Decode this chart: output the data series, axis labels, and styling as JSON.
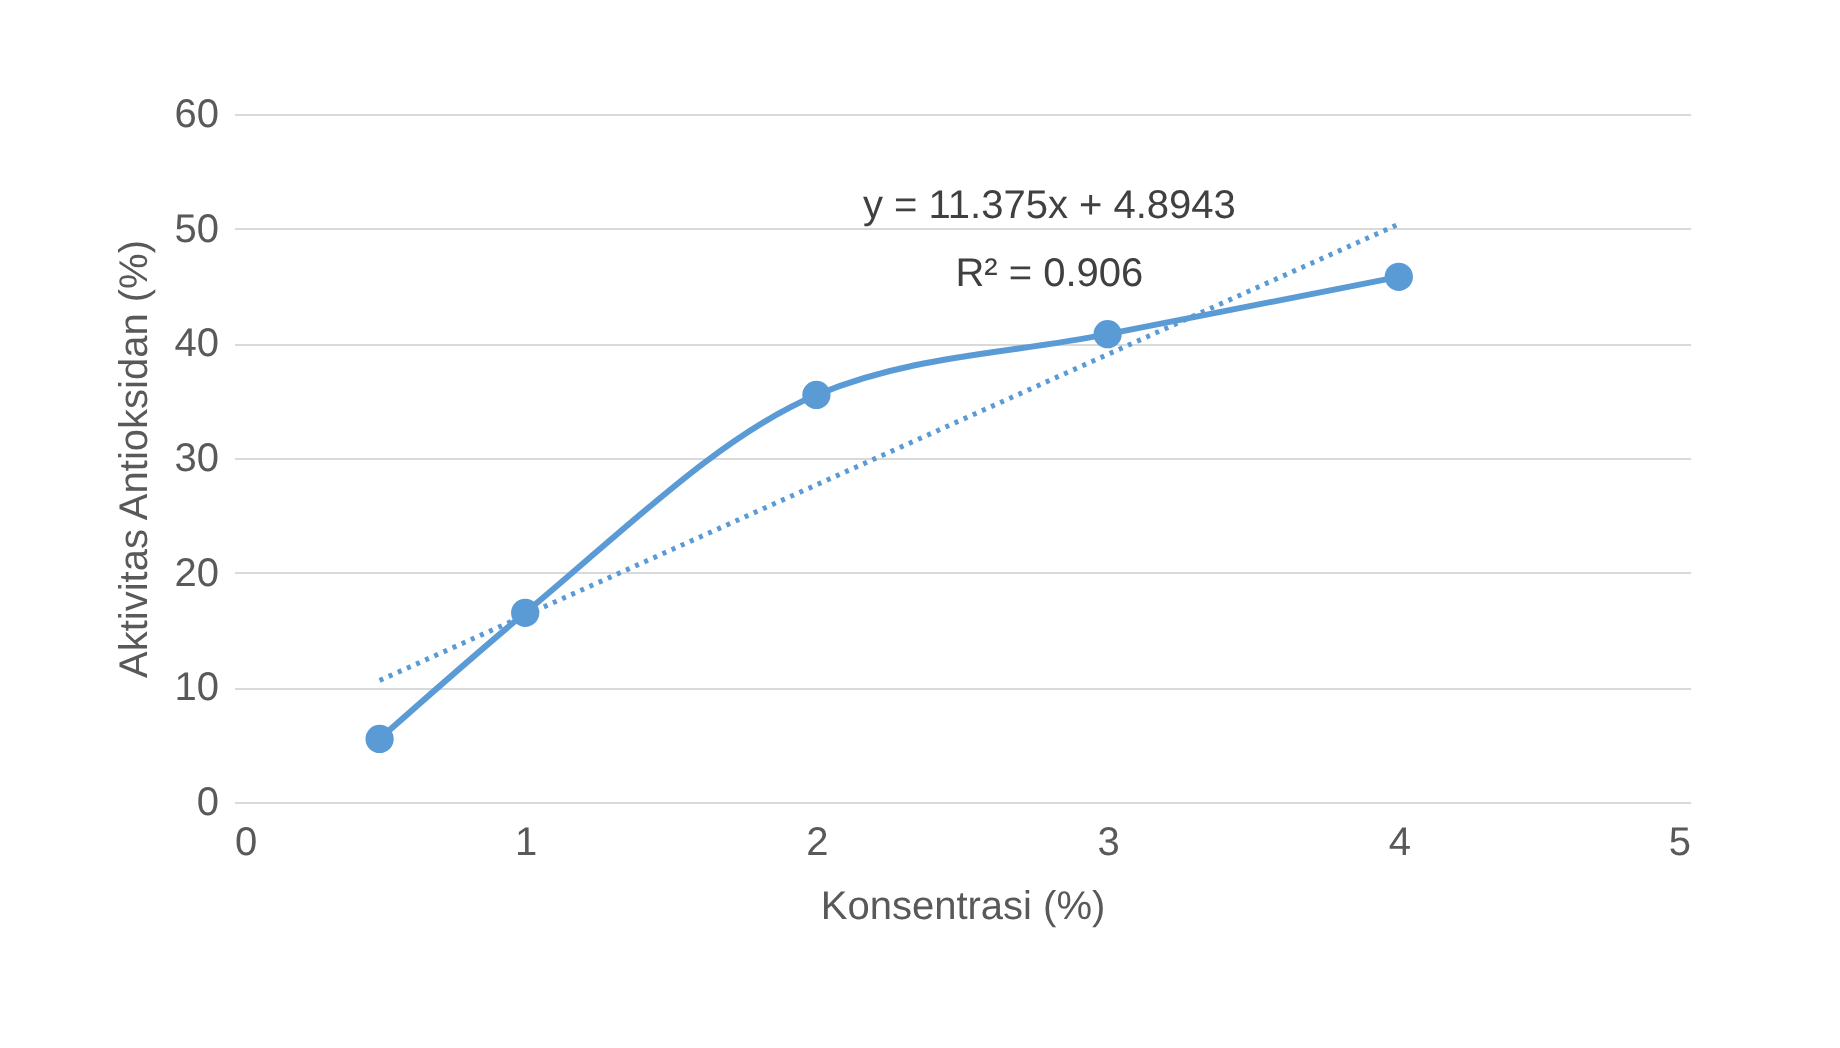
{
  "chart_data": {
    "type": "line",
    "xlabel": "Konsentrasi (%)",
    "ylabel": "Aktivitas Antioksidan (%)",
    "xlim": [
      0,
      5
    ],
    "xticks": [
      0,
      1,
      2,
      3,
      4,
      5
    ],
    "ylim": [
      0,
      60
    ],
    "yticks": [
      0,
      10,
      20,
      30,
      40,
      50,
      60
    ],
    "grid": "y",
    "annotations": [
      "y = 11.375x + 4.8943",
      "R² = 0.906"
    ],
    "series": [
      {
        "color": "#5b9bd5",
        "x": [
          0.5,
          1,
          2,
          3,
          4
        ],
        "values": [
          5.5,
          16.5,
          35.5,
          40.8,
          45.8
        ],
        "marker": "circle",
        "line_style": "solid"
      },
      {
        "color": "#5b9bd5",
        "x": [
          0.5,
          4
        ],
        "values": [
          10.6,
          50.4
        ],
        "marker": "none",
        "line_style": "dotted"
      }
    ]
  }
}
